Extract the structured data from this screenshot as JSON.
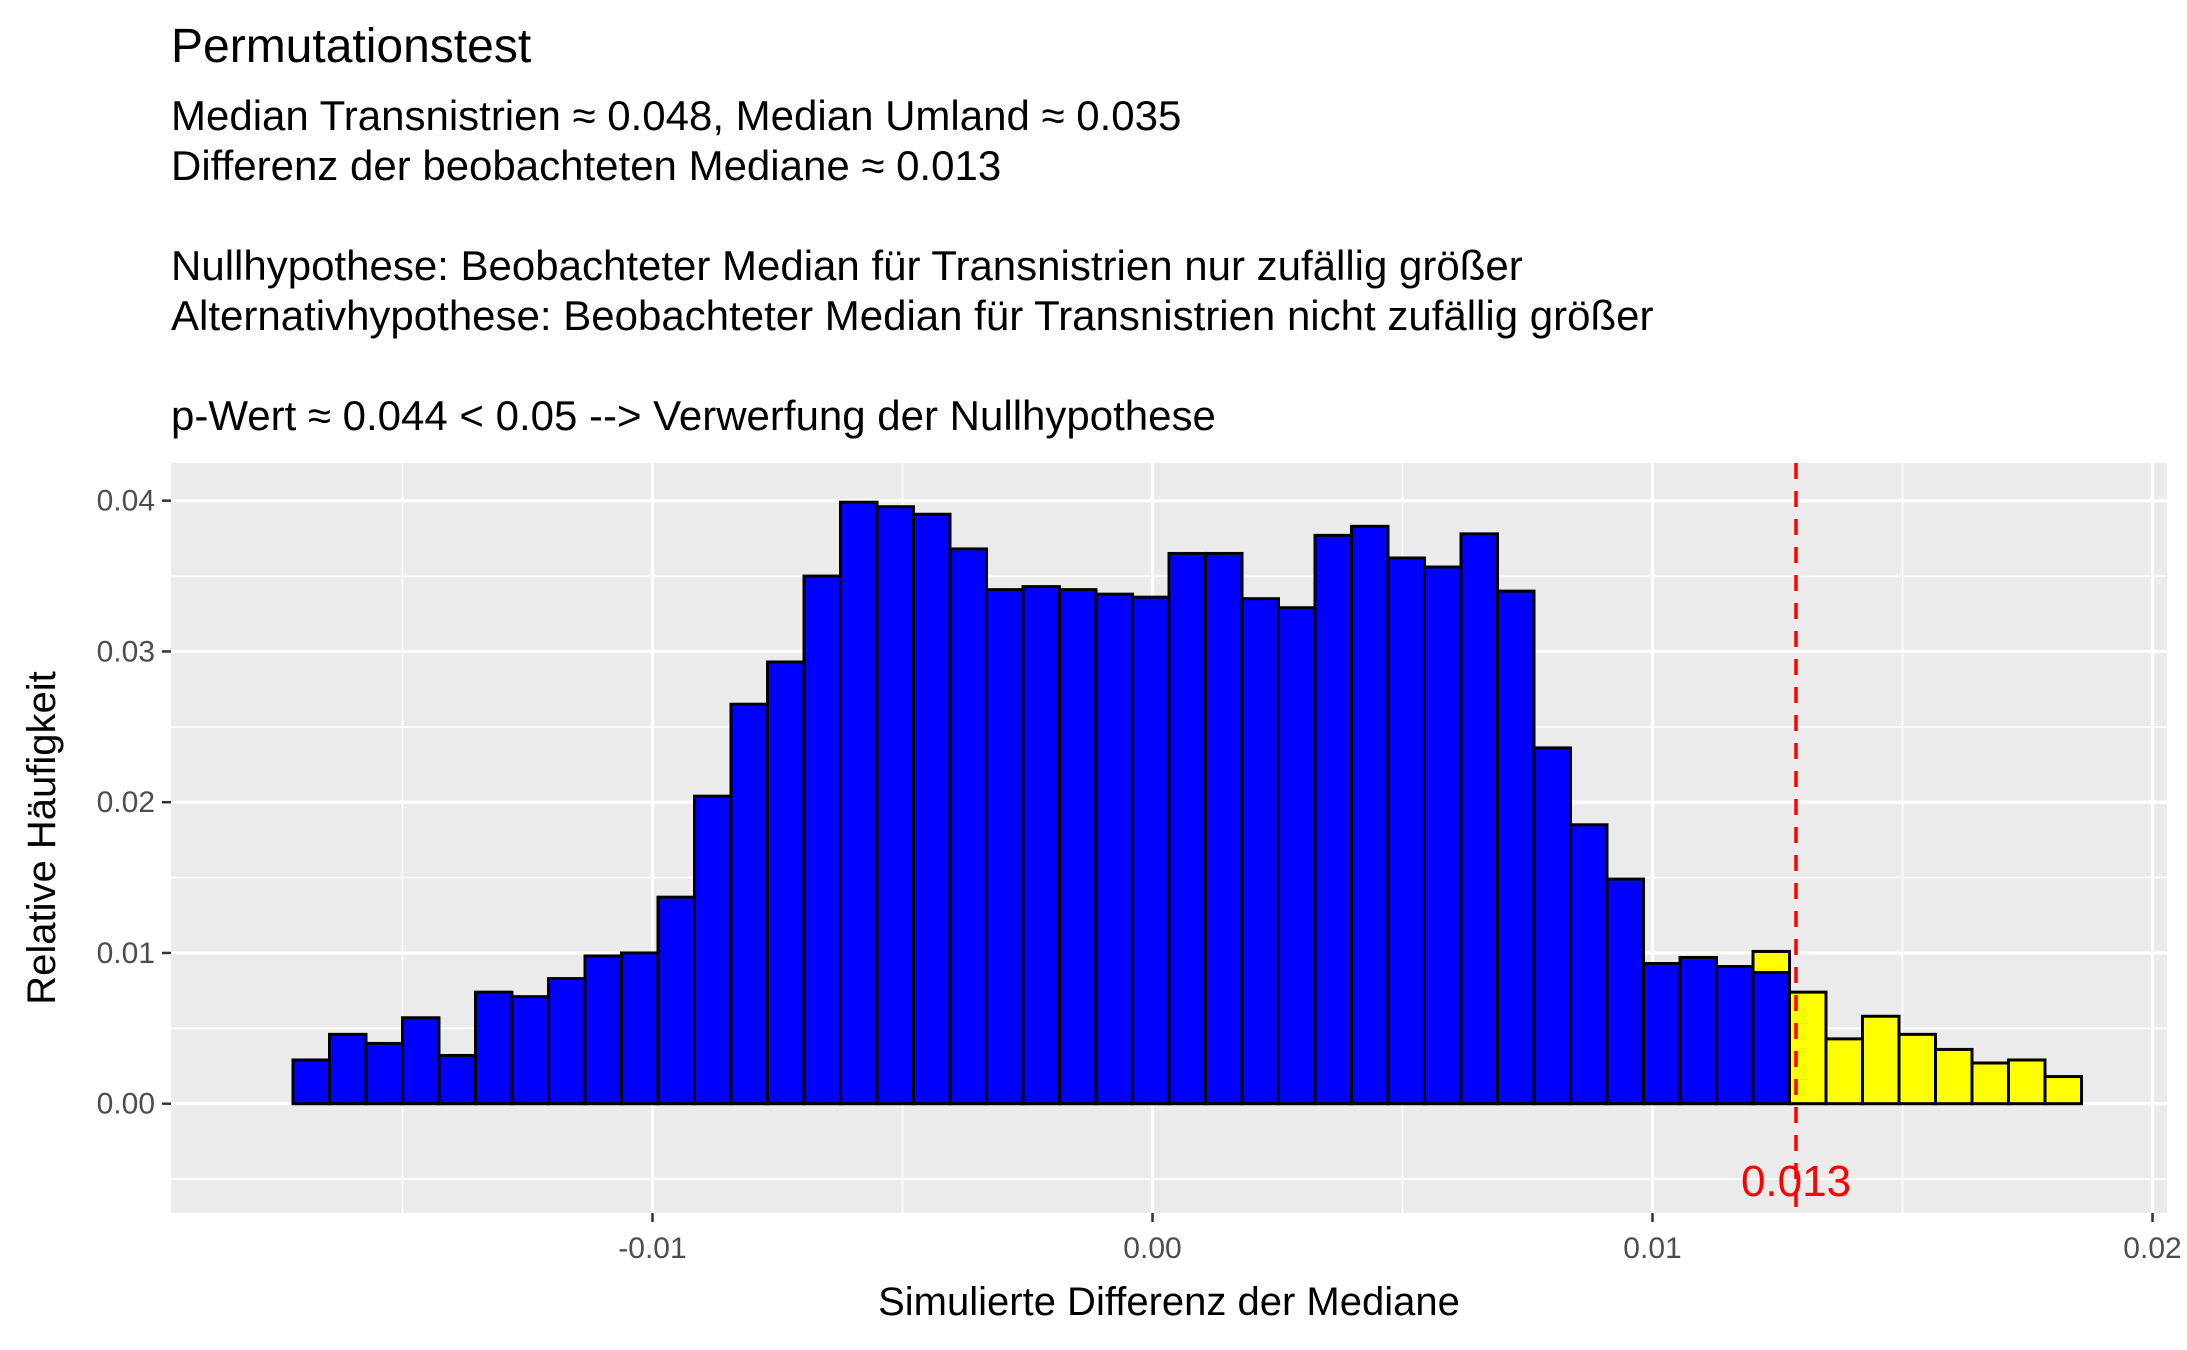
{
  "chart_data": {
    "type": "bar",
    "title": "Permutationstest",
    "subtitle_lines": [
      "Median Transnistrien ≈ 0.048, Median Umland ≈ 0.035",
      "Differenz der beobachteten Mediane ≈ 0.013",
      "",
      "Nullhypothese: Beobachteter Median für Transnistrien nur zufällig größer",
      "Alternativhypothese: Beobachteter Median für Transnistrien nicht zufällig größer",
      "",
      "p-Wert ≈ 0.044 < 0.05 --> Verwerfung der Nullhypothese"
    ],
    "xlabel": "Simulierte Differenz der Mediane",
    "ylabel": "Relative Häufigkeit",
    "xlim": [
      -0.01963,
      0.02029
    ],
    "ylim": [
      -0.00725,
      0.0425
    ],
    "x_ticks": [
      -0.01,
      0.0,
      0.01,
      0.02
    ],
    "x_tick_labels": [
      "-0.01",
      "0.00",
      "0.01",
      "0.02"
    ],
    "y_ticks": [
      0.0,
      0.01,
      0.02,
      0.03,
      0.04
    ],
    "y_tick_labels": [
      "0.00",
      "0.01",
      "0.02",
      "0.03",
      "0.04"
    ],
    "grid": true,
    "legend": "none",
    "bin_width": 0.00073,
    "x_start": -0.01719,
    "colors": {
      "panel": "#ebebeb",
      "grid": "#ffffff",
      "bar_normal": "#0000ff",
      "bar_extreme": "#ffff00",
      "bar_outline": "#000000",
      "threshold_line": "#ff0000"
    },
    "series": [
      {
        "values": [
          0.0029,
          0.0046,
          0.004,
          0.0057,
          0.0032,
          0.0074,
          0.0071,
          0.0083,
          0.0098,
          0.01,
          0.0137,
          0.0204,
          0.0265,
          0.0293,
          0.035,
          0.0399,
          0.0396,
          0.0391,
          0.0368,
          0.0341,
          0.0343,
          0.0341,
          0.0338,
          0.0336,
          0.0365,
          0.0365,
          0.0335,
          0.0329,
          0.0377,
          0.0383,
          0.0362,
          0.0356,
          0.0378,
          0.034,
          0.0236,
          0.0185,
          0.0149,
          0.0093,
          0.0097,
          0.0091,
          0.0087,
          0.0,
          0.0,
          0.0,
          0.0,
          0.0,
          0.0,
          0.0,
          0.0,
          0.0,
          0.0,
          0.0
        ]
      },
      {
        "values": [
          0,
          0,
          0,
          0,
          0,
          0,
          0,
          0,
          0,
          0,
          0,
          0,
          0,
          0,
          0,
          0,
          0,
          0,
          0,
          0,
          0,
          0,
          0,
          0,
          0,
          0,
          0,
          0,
          0,
          0,
          0,
          0,
          0,
          0,
          0,
          0,
          0,
          0,
          0,
          0,
          0.0014,
          0.0074,
          0.0043,
          0.0058,
          0.0046,
          0.0036,
          0.0027,
          0.0029,
          0.0018
        ]
      }
    ],
    "threshold": {
      "x": 0.01287,
      "label": "0.013"
    }
  }
}
